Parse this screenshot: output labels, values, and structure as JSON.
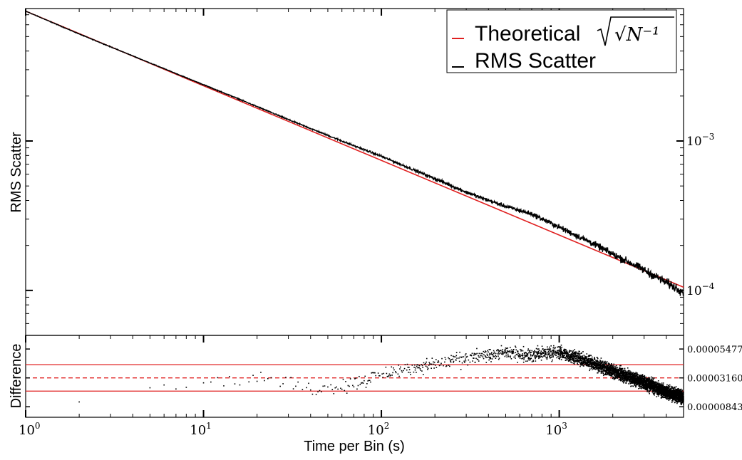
{
  "chart_data": [
    {
      "type": "line",
      "panel": "main",
      "xlabel": "",
      "ylabel": "RMS Scatter",
      "xscale": "log",
      "yscale": "log",
      "xlim": [
        1,
        5000
      ],
      "ylim": [
        5e-05,
        0.0077
      ],
      "grid": false,
      "legend_position": "top-right",
      "yticks_right": [
        {
          "value": 0.001,
          "base": "10",
          "exp": "−3"
        },
        {
          "value": 0.0001,
          "base": "10",
          "exp": "−4"
        }
      ],
      "series": [
        {
          "name": "Theoretical",
          "name_math": "√N⁻¹",
          "color": "#e02020",
          "x": [
            1,
            5000
          ],
          "y": [
            0.0074,
            0.000105
          ]
        },
        {
          "name": "RMS Scatter",
          "color": "#000000",
          "x": [
            1,
            2,
            5,
            10,
            15,
            20,
            30,
            50,
            70,
            100,
            150,
            200,
            300,
            400,
            500,
            700,
            1000,
            1500,
            2000,
            3000,
            4000,
            5000
          ],
          "y": [
            0.0074,
            0.0052,
            0.00333,
            0.00238,
            0.00196,
            0.0017,
            0.00139,
            0.00109,
            0.00093,
            0.00079,
            0.000645,
            0.00056,
            0.000455,
            0.0004,
            0.000365,
            0.000325,
            0.000265,
            0.00021,
            0.000175,
            0.000137,
            0.000113,
            9.8e-05
          ]
        }
      ]
    },
    {
      "type": "scatter",
      "panel": "residual",
      "xlabel": "Time per Bin (s)",
      "ylabel": "Difference",
      "xscale": "log",
      "xlim": [
        1,
        5000
      ],
      "ylim": [
        0,
        6.57e-05
      ],
      "xticks": [
        {
          "value": 1,
          "base": "10",
          "exp": "0"
        },
        {
          "value": 10,
          "base": "10",
          "exp": "1"
        },
        {
          "value": 100,
          "base": "10",
          "exp": "2"
        },
        {
          "value": 1000,
          "base": "10",
          "exp": "3"
        }
      ],
      "yticks_right": [
        "0.00005477",
        "0.00003160",
        "0.00000843"
      ],
      "reference_lines": {
        "mean": 3.16e-05,
        "upper": 4.22e-05,
        "lower": 2.1e-05,
        "color": "#e02020"
      },
      "trend": {
        "x": [
          2,
          3,
          5,
          10,
          20,
          30,
          40,
          50,
          70,
          100,
          150,
          200,
          300,
          400,
          500,
          700,
          1000,
          1500,
          2000,
          3000,
          4000,
          5000
        ],
        "y": [
          8e-06,
          2.7e-05,
          2.6e-05,
          2.9e-05,
          3.1e-05,
          2.7e-05,
          2.3e-05,
          2.4e-05,
          2.7e-05,
          3.4e-05,
          4e-05,
          4.3e-05,
          4.7e-05,
          5e-05,
          5.2e-05,
          5e-05,
          5.2e-05,
          4.4e-05,
          3.7e-05,
          2.8e-05,
          2e-05,
          1.6e-05
        ]
      }
    }
  ]
}
